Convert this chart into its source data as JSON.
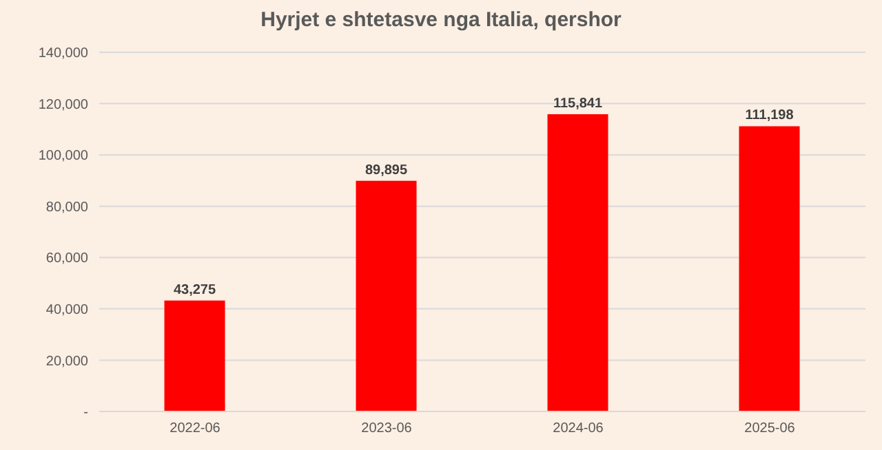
{
  "chart_data": {
    "type": "bar",
    "title": "Hyrjet e shtetasve nga Italia, qershor",
    "categories": [
      "2022-06",
      "2023-06",
      "2024-06",
      "2025-06"
    ],
    "values": [
      43275,
      89895,
      115841,
      111198
    ],
    "color": "#ff0000",
    "value_labels": [
      "43,275",
      "89,895",
      "115,841",
      "111,198"
    ],
    "ylim": [
      0,
      140000
    ],
    "yticks": [
      {
        "value": 0,
        "label": "-"
      },
      {
        "value": 20000,
        "label": "20,000"
      },
      {
        "value": 40000,
        "label": "40,000"
      },
      {
        "value": 60000,
        "label": "60,000"
      },
      {
        "value": 80000,
        "label": "80,000"
      },
      {
        "value": 100000,
        "label": "100,000"
      },
      {
        "value": 120000,
        "label": "120,000"
      },
      {
        "value": 140000,
        "label": "140,000"
      }
    ],
    "grid": "y"
  }
}
